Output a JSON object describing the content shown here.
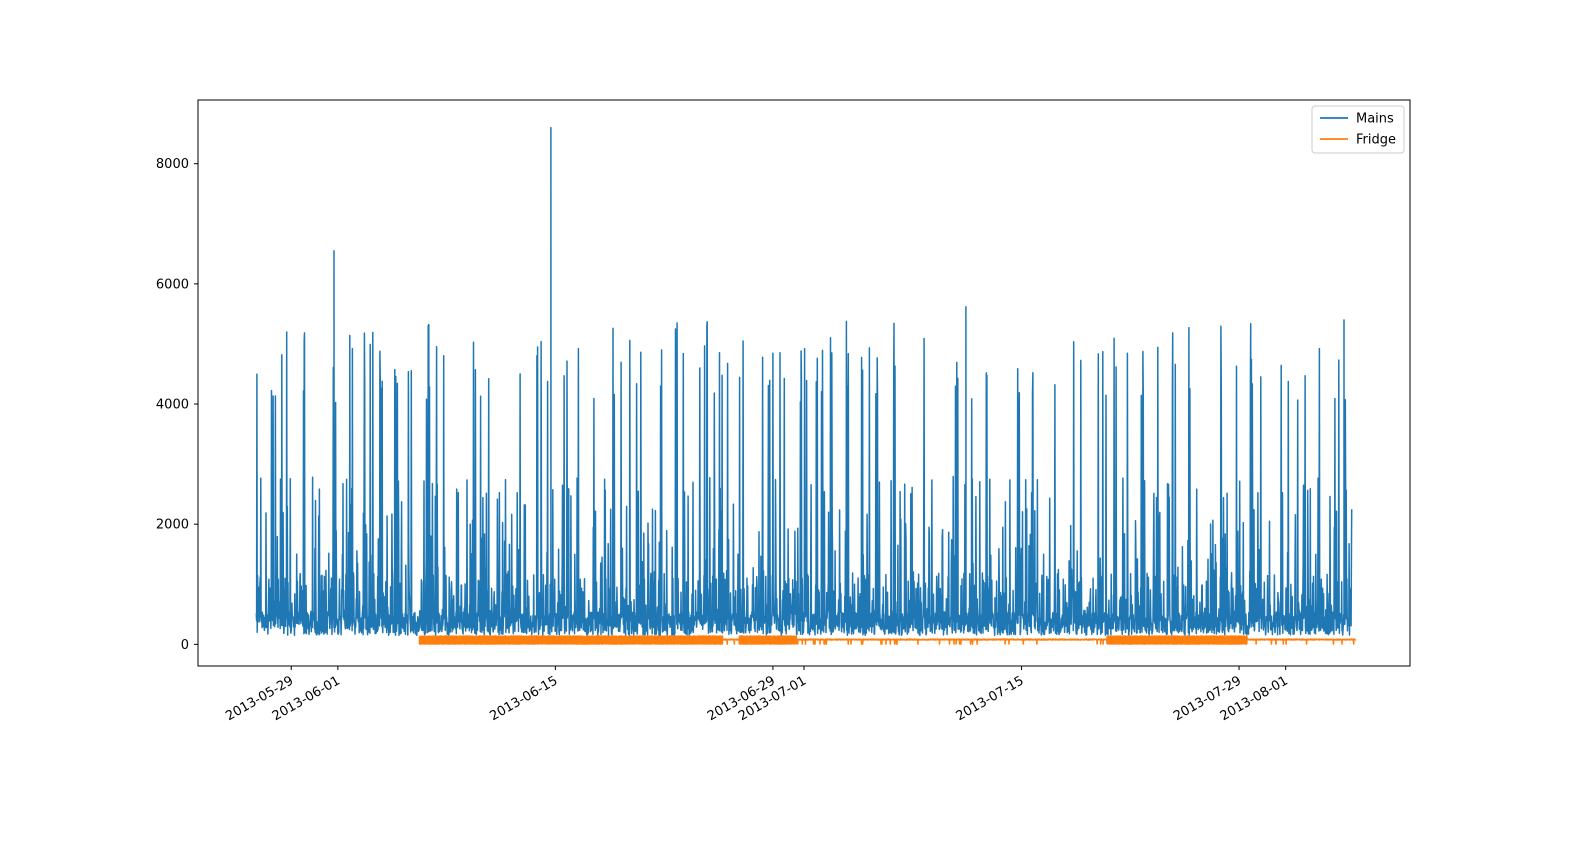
{
  "chart_data": {
    "type": "line",
    "title": "",
    "xlabel": "",
    "ylabel": "",
    "x_axis_type": "date",
    "xlim": [
      "2013-05-23",
      "2013-08-09"
    ],
    "ylim": [
      -360,
      9060
    ],
    "grid": false,
    "legend_position": "top-right",
    "x_ticks": [
      "2013-05-29",
      "2013-06-01",
      "2013-06-15",
      "2013-06-29",
      "2013-07-01",
      "2013-07-15",
      "2013-07-29",
      "2013-08-01"
    ],
    "y_ticks": [
      0,
      2000,
      4000,
      6000,
      8000
    ],
    "x_tick_labels": [
      "2013-05-29",
      "2013-06-01",
      "2013-06-15",
      "2013-06-29",
      "2013-07-01",
      "2013-07-15",
      "2013-07-29",
      "2013-08-01"
    ],
    "y_tick_labels": [
      "0",
      "2000",
      "4000",
      "6000",
      "8000"
    ],
    "series": [
      {
        "name": "Mains",
        "color": "#1f77b4",
        "time_range": [
          "2013-05-26T18:00",
          "2013-08-05T06:00"
        ],
        "baseline_range": [
          150,
          800
        ],
        "daily_peak_range": [
          4000,
          5400
        ],
        "notable_spikes": [
          {
            "date": "2013-05-31T18:00",
            "value": 6550
          },
          {
            "date": "2013-06-14T17:00",
            "value": 8600
          },
          {
            "date": "2013-07-11T10:00",
            "value": 5620
          },
          {
            "date": "2013-08-04T18:00",
            "value": 5400
          }
        ]
      },
      {
        "name": "Fridge",
        "color": "#ff7f0e",
        "time_range": [
          "2013-06-06T06:00",
          "2013-08-05T12:00"
        ],
        "dense_cycling_periods": [
          [
            "2013-06-06T06:00",
            "2013-06-25T18:00"
          ],
          [
            "2013-06-26T20:00",
            "2013-06-30T12:00"
          ],
          [
            "2013-07-20T12:00",
            "2013-07-29T12:00"
          ]
        ],
        "cycling_range": [
          0,
          140
        ],
        "steady_level": 80
      }
    ]
  }
}
